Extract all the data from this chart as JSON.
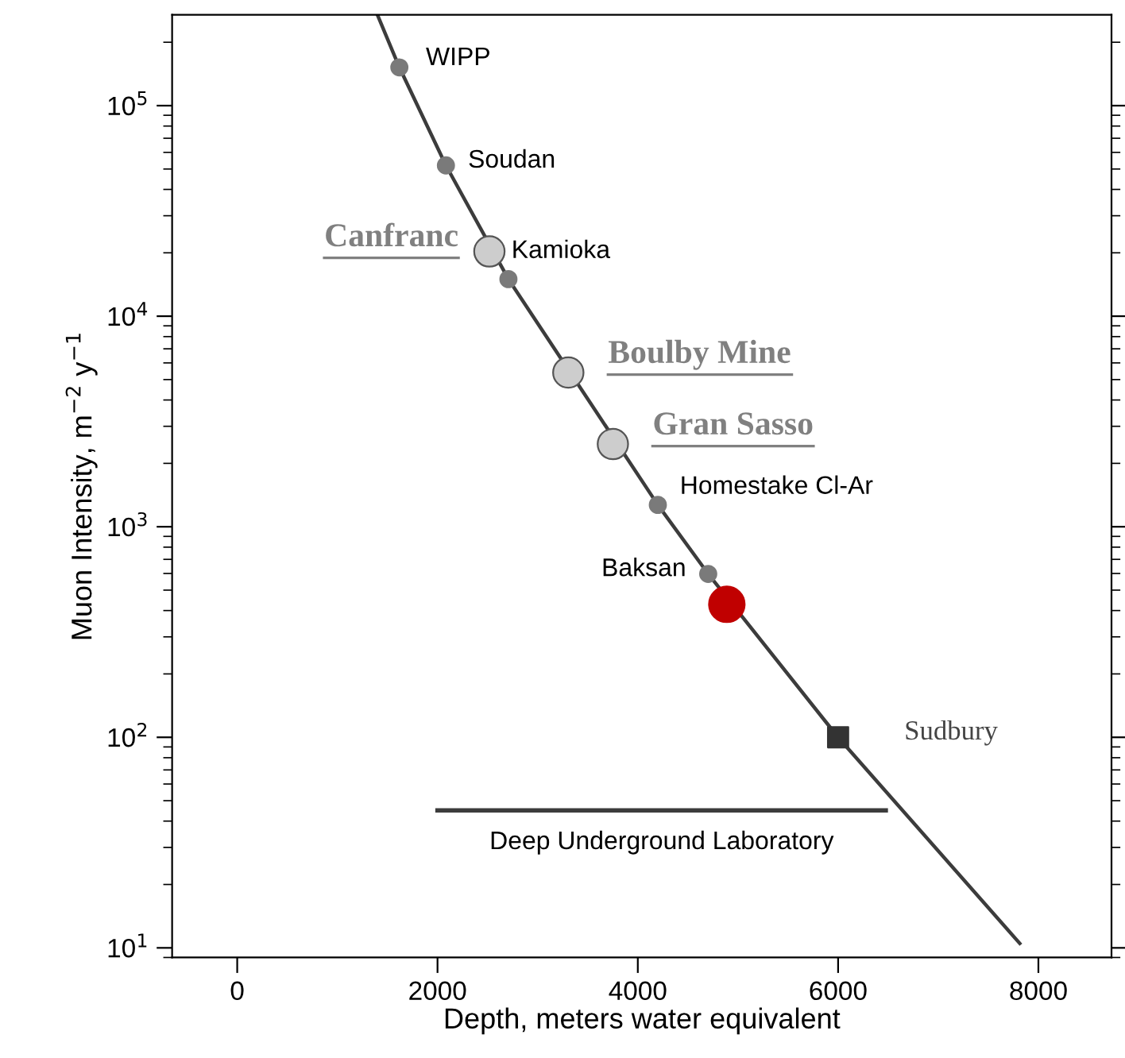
{
  "chart_data": {
    "type": "scatter",
    "xlabel": "Depth, meters water equivalent",
    "ylabel": "Muon Intensity, m$^{−2}$ y$^{−1}$",
    "xlim": [
      -650,
      8730
    ],
    "ylim": [
      9,
      270000
    ],
    "log": "y",
    "xticks": [
      0,
      2000,
      4000,
      6000,
      8000
    ],
    "yticks": [
      {
        "value": 10,
        "label": "10$^{1}$"
      },
      {
        "value": 100,
        "label": "10$^{2}$"
      },
      {
        "value": 1000,
        "label": "10$^{3}$"
      },
      {
        "value": 10000,
        "label": "10$^{4}$"
      },
      {
        "value": 100000,
        "label": "10$^{5}$"
      }
    ],
    "grid": false,
    "legend": false,
    "series": [
      {
        "type": "line",
        "color": "#3c3c3c",
        "x": [
          1400,
          1619,
          2084,
          2708,
          4200,
          4703,
          6000,
          7814
        ],
        "values": [
          270000,
          152000,
          52000,
          15000,
          1270,
          597,
          100,
          10.5
        ],
        "marker": "none"
      },
      {
        "color": "#7a7a7a",
        "x": [
          1619,
          2084,
          2708,
          4200,
          4703
        ],
        "values": [
          152000,
          52000,
          15000,
          1270,
          597
        ],
        "marker": "circle"
      },
      {
        "color": "#cdcdcd",
        "x": [
          2518,
          3306,
          3751
        ],
        "values": [
          20300,
          5400,
          2470
        ],
        "marker": "circle"
      },
      {
        "color": "#333333",
        "x": [
          6000
        ],
        "values": [
          100
        ],
        "marker": "square"
      },
      {
        "color": "#c00000",
        "x": [
          4889
        ],
        "values": [
          428
        ],
        "marker": "circle"
      },
      {
        "type": "line",
        "name": "Deep Underground Laboratory",
        "color": "#3c3c3c",
        "x": [
          2000,
          6476
        ],
        "values": [
          45,
          45
        ],
        "marker": "none"
      }
    ],
    "annotations": [
      {
        "text": "WIPP",
        "x": 1619,
        "y": 152000
      },
      {
        "text": "Soudan",
        "x": 2084,
        "y": 52000
      },
      {
        "text": "Canfranc",
        "x": 2518,
        "y": 20300
      },
      {
        "text": "Kamioka",
        "x": 2518,
        "y": 20300
      },
      {
        "text": "Boulby Mine",
        "x": 3306,
        "y": 5400
      },
      {
        "text": "Gran Sasso",
        "x": 3751,
        "y": 2470
      },
      {
        "text": "Homestake Cl-Ar",
        "x": 4200,
        "y": 1270
      },
      {
        "text": "Baksan",
        "x": 4703,
        "y": 597
      },
      {
        "text": "Sudbury",
        "x": 6000,
        "y": 100
      }
    ]
  }
}
